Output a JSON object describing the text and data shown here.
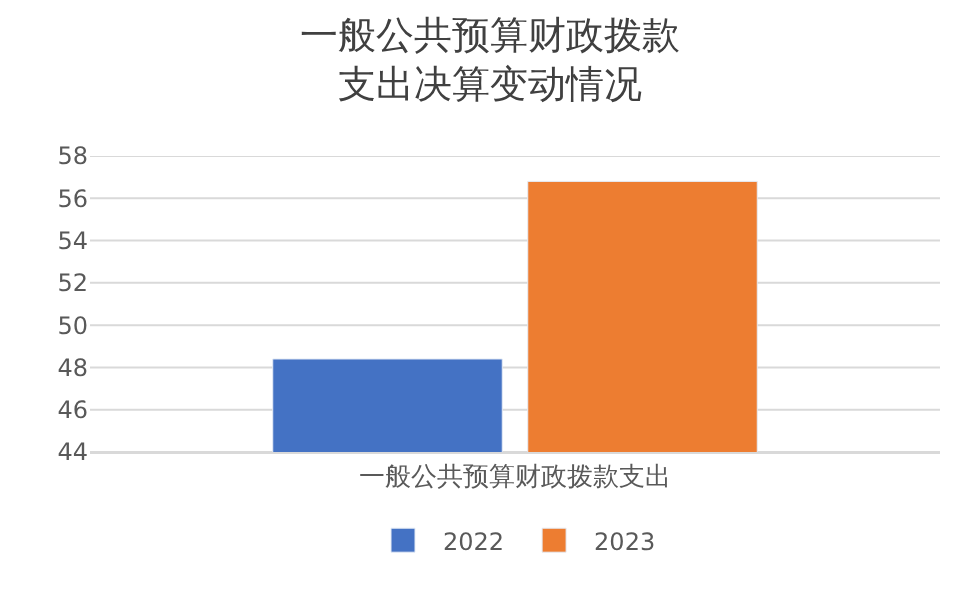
{
  "chart_data": {
    "type": "bar",
    "title": "一般公共预算财政拨款支出决算变动情况",
    "categories": [
      "一般公共预算财政拨款支出"
    ],
    "series": [
      {
        "name": "2022",
        "color": "#4472c4",
        "values": [
          48.4
        ]
      },
      {
        "name": "2023",
        "color": "#ed7d31",
        "values": [
          56.8
        ]
      }
    ],
    "ylim": [
      44,
      58
    ],
    "yticks": [
      44,
      46,
      48,
      50,
      52,
      54,
      56,
      58
    ],
    "grid": "y",
    "legend": "bottom"
  }
}
